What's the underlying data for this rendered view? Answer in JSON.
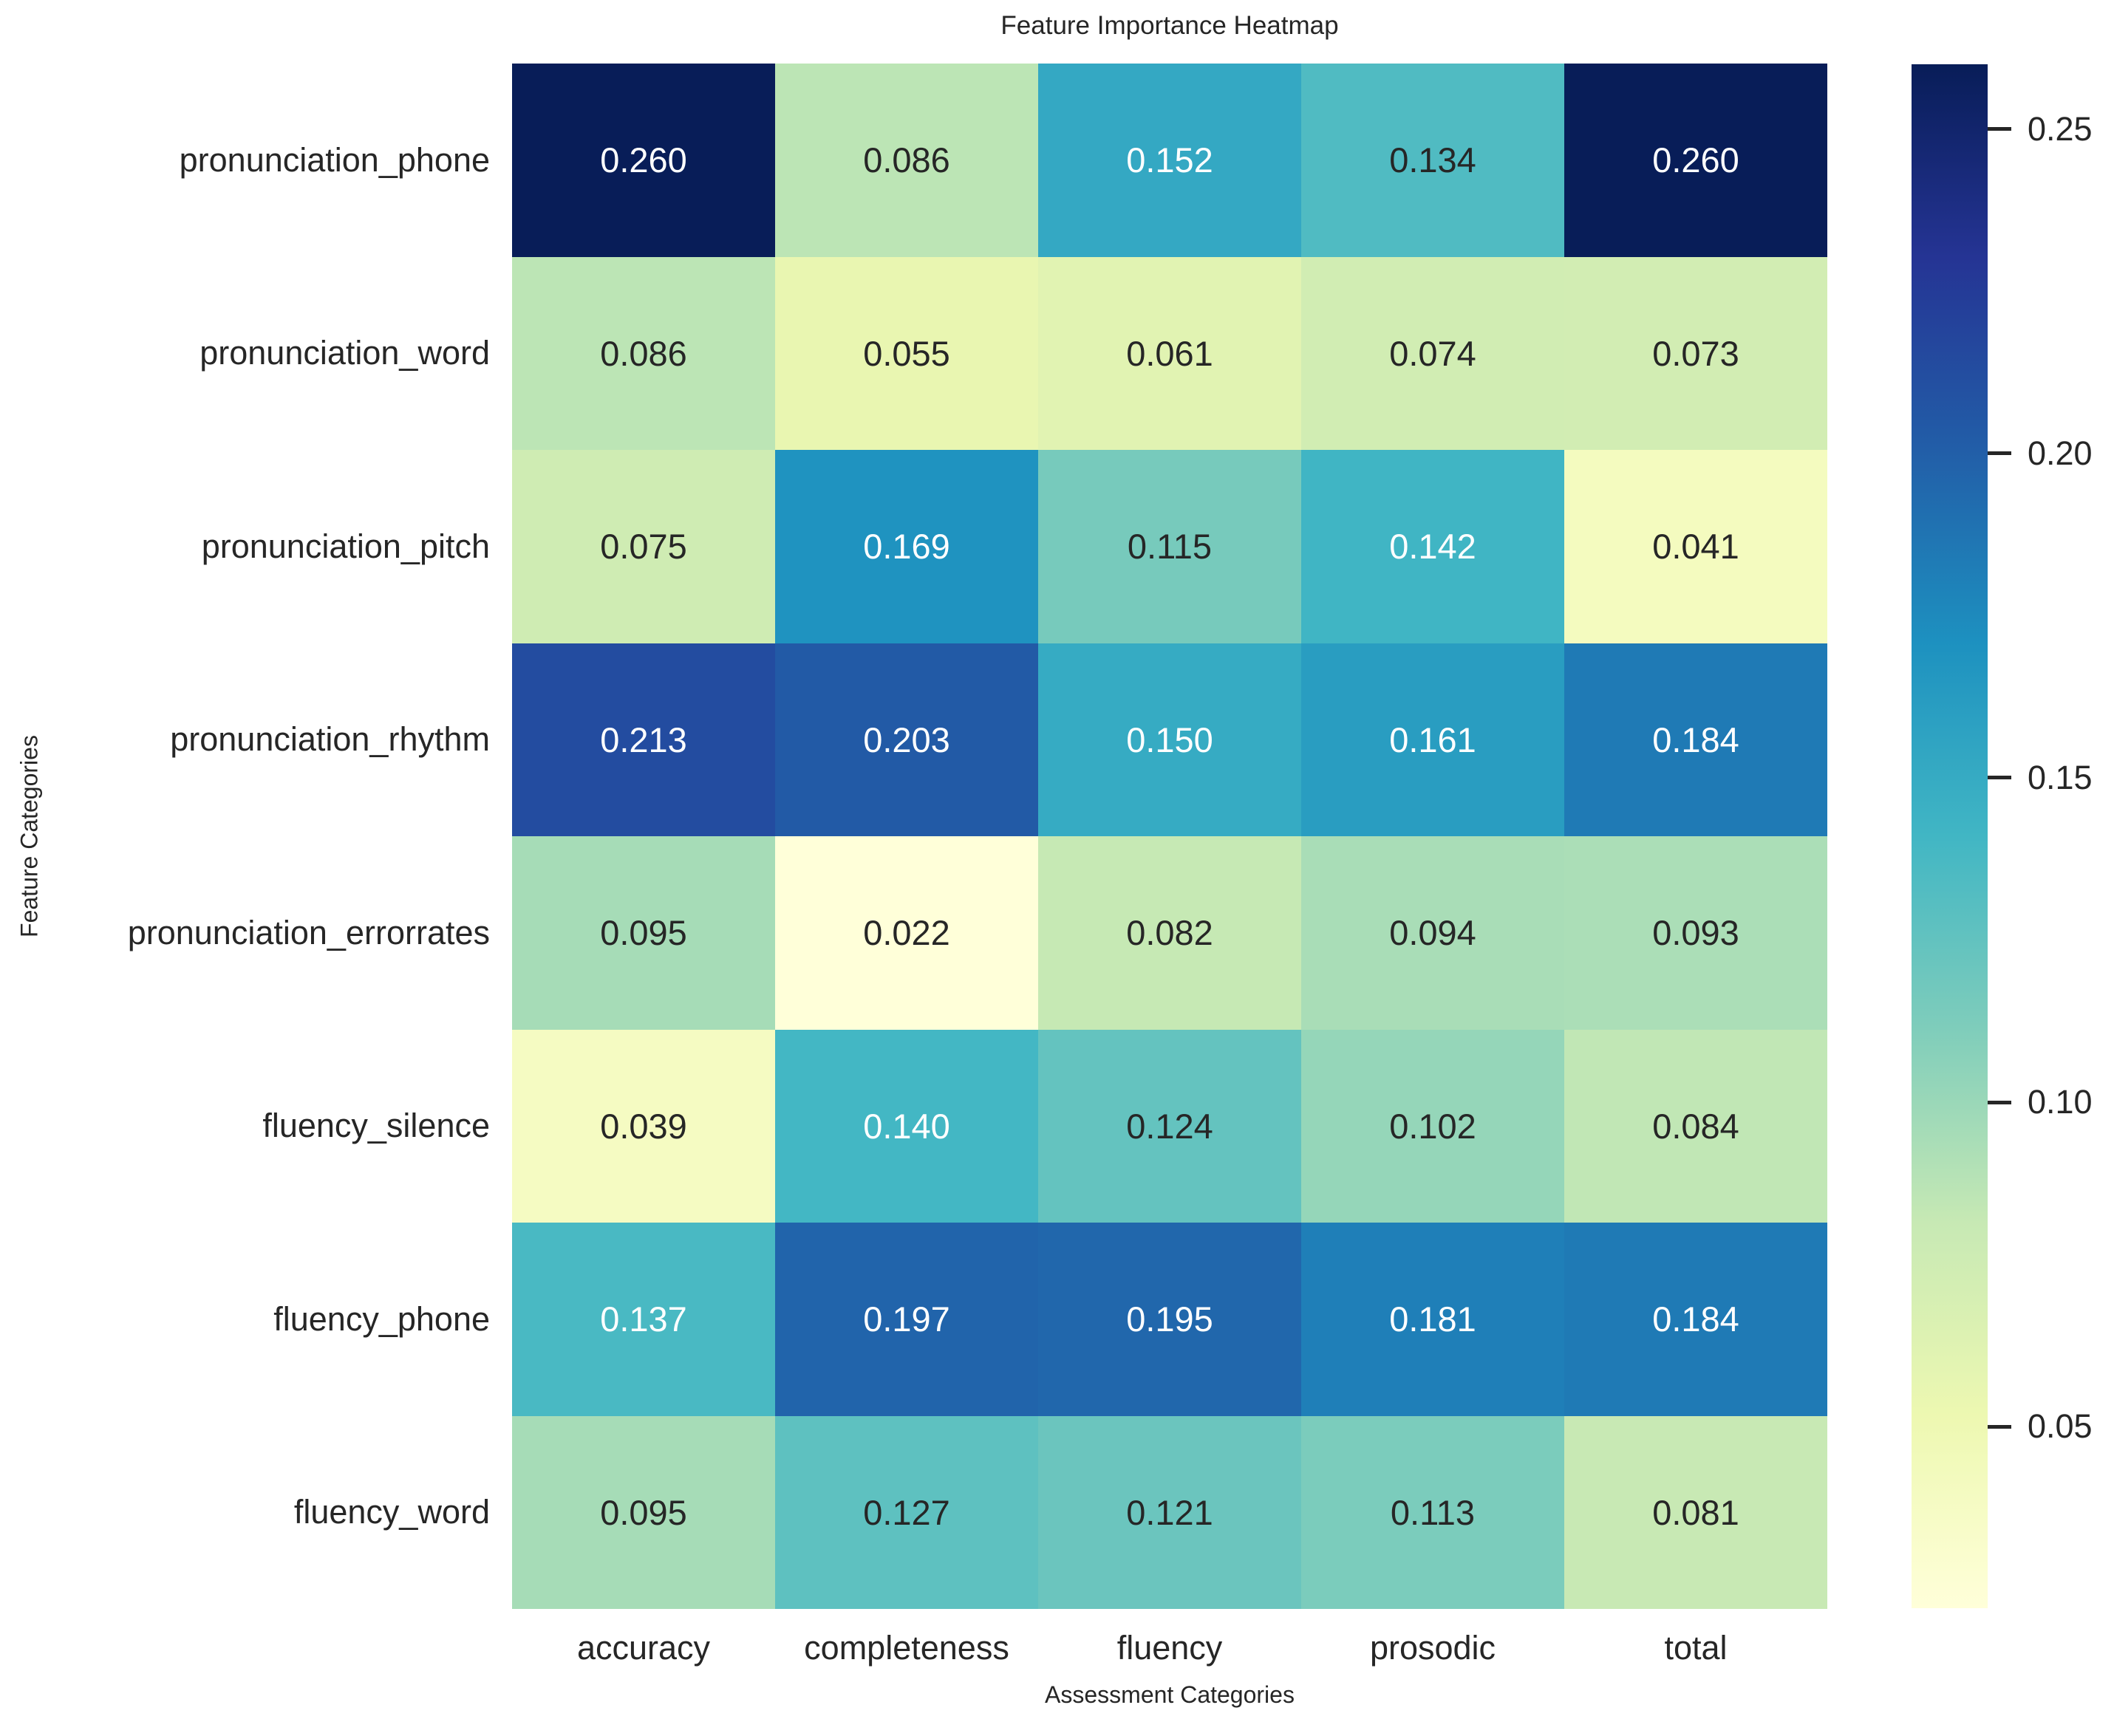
{
  "chart_data": {
    "type": "heatmap",
    "title": "Feature Importance Heatmap",
    "xlabel": "Assessment Categories",
    "ylabel": "Feature Categories",
    "columns": [
      "accuracy",
      "completeness",
      "fluency",
      "prosodic",
      "total"
    ],
    "rows": [
      "pronunciation_phone",
      "pronunciation_word",
      "pronunciation_pitch",
      "pronunciation_rhythm",
      "pronunciation_errorrates",
      "fluency_silence",
      "fluency_phone",
      "fluency_word"
    ],
    "values": [
      [
        0.26,
        0.086,
        0.152,
        0.134,
        0.26
      ],
      [
        0.086,
        0.055,
        0.061,
        0.074,
        0.073
      ],
      [
        0.075,
        0.169,
        0.115,
        0.142,
        0.041
      ],
      [
        0.213,
        0.203,
        0.15,
        0.161,
        0.184
      ],
      [
        0.095,
        0.022,
        0.082,
        0.094,
        0.093
      ],
      [
        0.039,
        0.14,
        0.124,
        0.102,
        0.084
      ],
      [
        0.137,
        0.197,
        0.195,
        0.181,
        0.184
      ],
      [
        0.095,
        0.127,
        0.121,
        0.113,
        0.081
      ]
    ],
    "decimals": 3,
    "vmin": 0.022,
    "vmax": 0.26,
    "colormap": {
      "name": "YlGnBu",
      "stops": [
        "#ffffd9",
        "#edf8b1",
        "#c7e9b4",
        "#7fcdbb",
        "#41b6c4",
        "#1d91c0",
        "#225ea8",
        "#253494",
        "#081d58"
      ]
    },
    "colorbar_ticks": [
      {
        "value": 0.25,
        "label": "0.25"
      },
      {
        "value": 0.2,
        "label": "0.20"
      },
      {
        "value": 0.15,
        "label": "0.15"
      },
      {
        "value": 0.1,
        "label": "0.10"
      },
      {
        "value": 0.05,
        "label": "0.05"
      }
    ],
    "annotations": true,
    "annotation_text_colors": {
      "light": "#ffffff",
      "dark": "#262626"
    },
    "background": "#ffffff",
    "grid": false,
    "legend_position": "right-colorbar"
  }
}
